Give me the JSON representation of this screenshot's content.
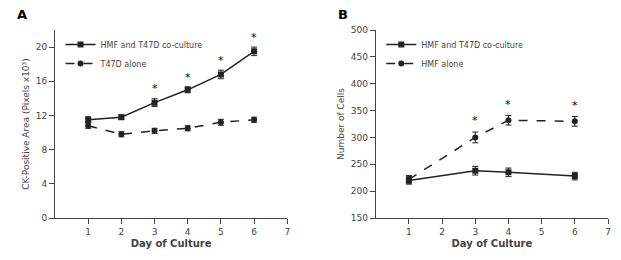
{
  "chart_data": [
    {
      "type": "line",
      "title": "A",
      "xlabel": "Day of Culture",
      "ylabel": "CK-Positive Area (Pixels x10³)",
      "series": [
        {
          "name": "HMF and T47D co-culture",
          "x": [
            1,
            2,
            3,
            4,
            5,
            6
          ],
          "values": [
            11.5,
            11.8,
            13.5,
            15.0,
            16.8,
            19.5
          ],
          "yerr": [
            0.35,
            0.25,
            0.45,
            0.35,
            0.5,
            0.5
          ],
          "color": "#222222",
          "marker": "square",
          "line_style": "solid"
        },
        {
          "name": "T47D alone",
          "x": [
            1,
            2,
            3,
            4,
            5,
            6
          ],
          "values": [
            10.8,
            9.8,
            10.2,
            10.5,
            11.2,
            11.5
          ],
          "yerr": [
            0.3,
            0.3,
            0.3,
            0.3,
            0.35,
            0.3
          ],
          "color": "#222222",
          "marker": "circle",
          "line_style": "dashed"
        }
      ],
      "annotations": [
        {
          "x": 3,
          "y": 14.2,
          "text": "*"
        },
        {
          "x": 4,
          "y": 15.5,
          "text": "*"
        },
        {
          "x": 5,
          "y": 17.4,
          "text": "*"
        },
        {
          "x": 6,
          "y": 20.1,
          "text": "*"
        }
      ],
      "xlim": [
        0,
        7
      ],
      "xticks": [
        1,
        2,
        3,
        4,
        5,
        6,
        7
      ],
      "ylim": [
        0,
        22
      ],
      "yticks": [
        0,
        4,
        8,
        12,
        16,
        20
      ],
      "grid": false,
      "legend": "upper left"
    },
    {
      "type": "line",
      "title": "B",
      "xlabel": "Day of Culture",
      "ylabel": "Number of Cells",
      "series": [
        {
          "name": "HMF and T47D co-culture",
          "x": [
            1,
            3,
            4,
            6
          ],
          "values": [
            220,
            238,
            235,
            228
          ],
          "yerr": [
            7,
            8,
            8,
            7
          ],
          "color": "#222222",
          "marker": "square",
          "line_style": "solid"
        },
        {
          "name": "HMF alone",
          "x": [
            1,
            3,
            4,
            6
          ],
          "values": [
            222,
            300,
            332,
            330
          ],
          "yerr": [
            7,
            10,
            9,
            9
          ],
          "color": "#222222",
          "marker": "circle",
          "line_style": "dashed"
        }
      ],
      "annotations": [
        {
          "x": 3,
          "y": 315,
          "text": "*"
        },
        {
          "x": 4,
          "y": 345,
          "text": "*"
        },
        {
          "x": 6,
          "y": 343,
          "text": "*"
        }
      ],
      "xlim": [
        0,
        7
      ],
      "xticks": [
        1,
        2,
        3,
        4,
        5,
        6,
        7
      ],
      "ylim": [
        150,
        500
      ],
      "yticks": [
        150,
        200,
        250,
        300,
        350,
        400,
        450,
        500
      ],
      "grid": false,
      "legend": "upper left"
    }
  ]
}
